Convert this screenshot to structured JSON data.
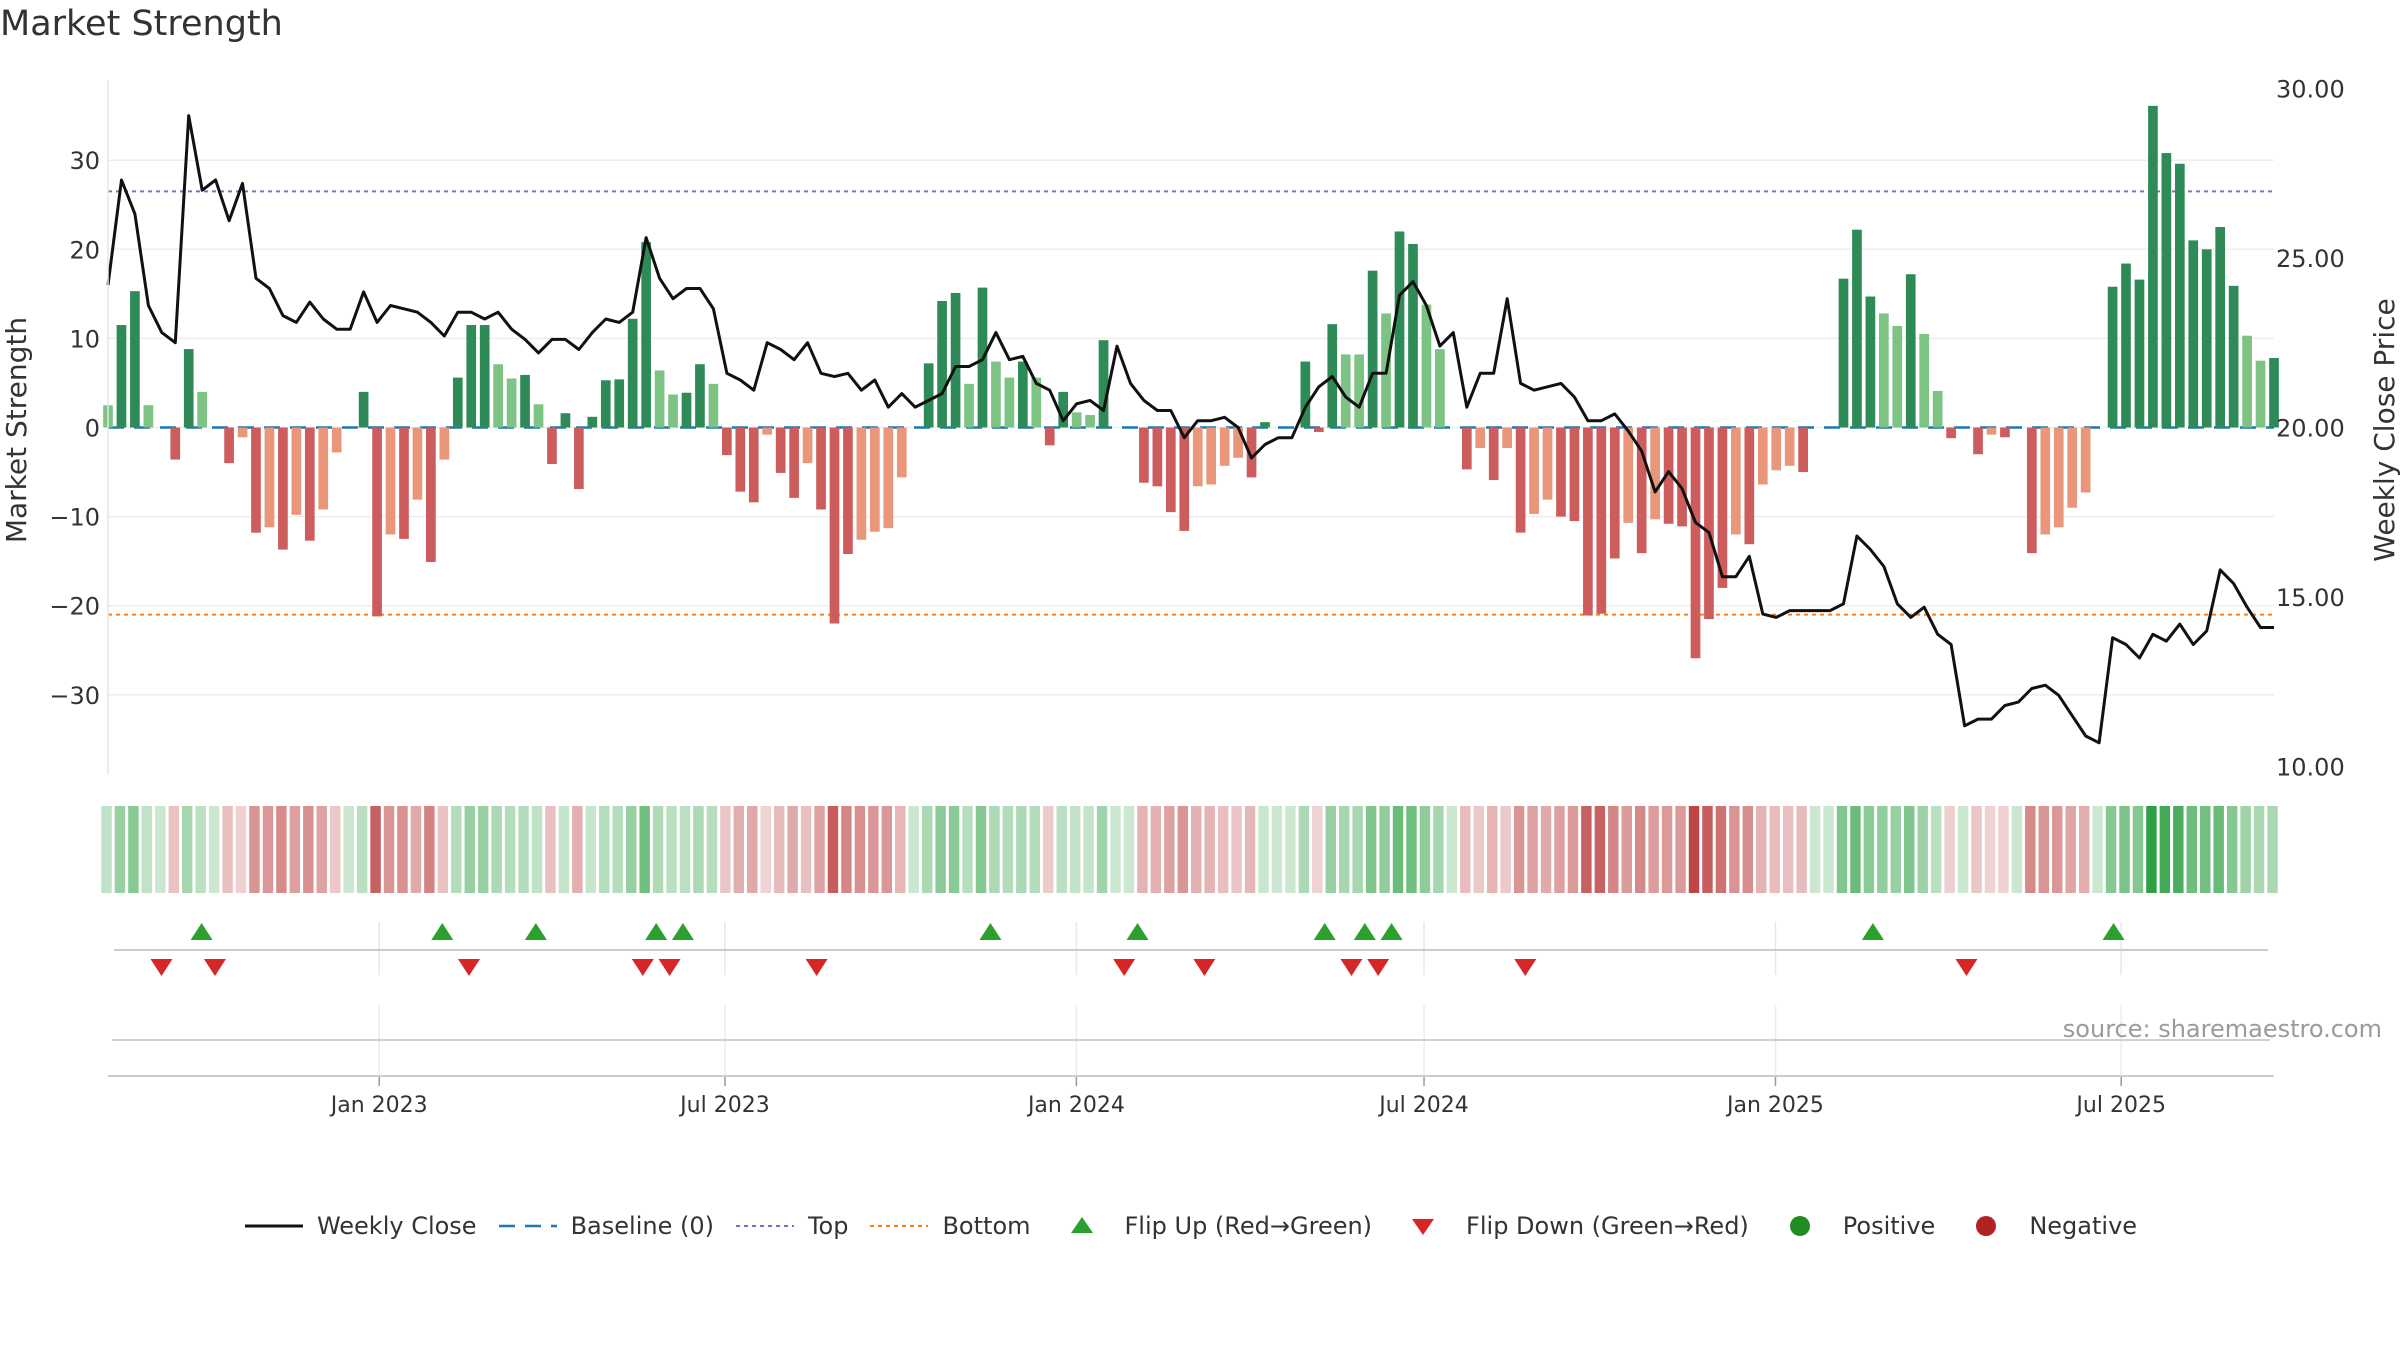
{
  "title": "Market Strength",
  "source": "source: sharemaestro.com",
  "colors": {
    "pos_strong": "#2e8b57",
    "pos_light": "#7dc383",
    "neg_strong": "#cd5c5c",
    "neg_light": "#e9967a",
    "close_line": "#111111",
    "baseline": "#1f77b4",
    "top": "#9467bd",
    "bottom": "#ff7f0e",
    "flip_up": "#2ca02c",
    "flip_down": "#d62728",
    "positive_dot": "#228b22",
    "negative_dot": "#b22222"
  },
  "legend": [
    {
      "key": "close",
      "label": "Weekly Close"
    },
    {
      "key": "baseline",
      "label": "Baseline (0)"
    },
    {
      "key": "top",
      "label": "Top"
    },
    {
      "key": "bottom",
      "label": "Bottom"
    },
    {
      "key": "flip_up",
      "label": "Flip Up (Red→Green)"
    },
    {
      "key": "flip_down",
      "label": "Flip Down (Green→Red)"
    },
    {
      "key": "positive",
      "label": "Positive"
    },
    {
      "key": "negative",
      "label": "Negative"
    }
  ],
  "chart_data": {
    "type": "bar",
    "ylabel": "Market Strength",
    "y2label": "Weekly Close Price",
    "ylim": [
      -39,
      39
    ],
    "y2lim": [
      9.75,
      30.25
    ],
    "yticks": [
      -30,
      -20,
      -10,
      0,
      10,
      20,
      30
    ],
    "ytick_labels": [
      "−30",
      "−20",
      "−10",
      "0",
      "10",
      "20",
      "30"
    ],
    "y2ticks": [
      10,
      15,
      20,
      25,
      30
    ],
    "y2tick_labels": [
      "10.00",
      "15.00",
      "20.00",
      "25.00",
      "30.00"
    ],
    "top_level": 26.5,
    "bottom_level": -21,
    "start_date": "2022-08-12",
    "end_date": "2025-09-19",
    "x_ticks": [
      {
        "date": "2023-01-01",
        "label": "Jan 2023"
      },
      {
        "date": "2023-07-01",
        "label": "Jul 2023"
      },
      {
        "date": "2024-01-01",
        "label": "Jan 2024"
      },
      {
        "date": "2024-07-01",
        "label": "Jul 2024"
      },
      {
        "date": "2025-01-01",
        "label": "Jan 2025"
      },
      {
        "date": "2025-07-01",
        "label": "Jul 2025"
      }
    ],
    "strength": [
      2.5,
      11.5,
      15.3,
      2.5,
      0,
      -3.6,
      8.8,
      4,
      0,
      -4,
      -1.1,
      -11.8,
      -11.2,
      -13.7,
      -9.8,
      -12.7,
      -9.2,
      -2.8,
      0,
      4,
      -21.2,
      -12,
      -12.5,
      -8.1,
      -15.1,
      -3.6,
      5.6,
      11.5,
      11.5,
      7.1,
      5.5,
      5.9,
      2.6,
      -4.1,
      1.6,
      -6.9,
      1.2,
      5.3,
      5.4,
      12.2,
      20.8,
      6.4,
      3.7,
      3.9,
      7.1,
      4.9,
      -3.1,
      -7.2,
      -8.4,
      -0.8,
      -5.1,
      -7.9,
      -4,
      -9.2,
      -22,
      -14.2,
      -12.6,
      -11.7,
      -11.3,
      -5.6,
      0,
      7.2,
      14.2,
      15.1,
      4.9,
      15.7,
      7.4,
      5.6,
      7.4,
      5.6,
      -2,
      4,
      1.7,
      1.4,
      9.8,
      0,
      0,
      -6.2,
      -6.6,
      -9.5,
      -11.6,
      -6.6,
      -6.4,
      -4.3,
      -3.4,
      -5.6,
      0.6,
      0,
      0,
      7.4,
      -0.5,
      11.6,
      8.2,
      8.2,
      17.6,
      12.8,
      22,
      20.6,
      13.8,
      8.8,
      0,
      -4.7,
      -2.3,
      -5.9,
      -2.3,
      -11.8,
      -9.7,
      -8.1,
      -10,
      -10.5,
      -21.1,
      -20.9,
      -14.7,
      -10.7,
      -14.1,
      -10.3,
      -10.8,
      -11.1,
      -25.9,
      -21.5,
      -18,
      -12,
      -13.1,
      -6.4,
      -4.8,
      -4.3,
      -5,
      0,
      0,
      16.7,
      22.2,
      14.7,
      12.8,
      11.4,
      17.2,
      10.5,
      4.1,
      -1.2,
      0,
      -3,
      -0.8,
      -1.1,
      0,
      -14.1,
      -12,
      -11.2,
      -9,
      -7.3,
      0,
      15.8,
      18.4,
      16.6,
      36.1,
      30.8,
      29.6,
      21,
      20,
      22.5,
      15.9,
      10.3,
      7.5,
      7.8
    ],
    "close": [
      24.2,
      27.3,
      26.3,
      23.6,
      22.8,
      22.5,
      29.2,
      27,
      27.3,
      26.1,
      27.2,
      24.4,
      24.1,
      23.3,
      23.1,
      23.7,
      23.2,
      22.9,
      22.9,
      24,
      23.1,
      23.6,
      23.5,
      23.4,
      23.1,
      22.7,
      23.4,
      23.4,
      23.2,
      23.4,
      22.9,
      22.6,
      22.2,
      22.6,
      22.6,
      22.3,
      22.8,
      23.2,
      23.1,
      23.4,
      25.6,
      24.4,
      23.8,
      24.1,
      24.1,
      23.5,
      21.6,
      21.4,
      21.1,
      22.5,
      22.3,
      22,
      22.5,
      21.6,
      21.5,
      21.6,
      21.1,
      21.4,
      20.6,
      21,
      20.6,
      20.8,
      21,
      21.8,
      21.8,
      22,
      22.8,
      22,
      22.1,
      21.3,
      21.1,
      20.2,
      20.7,
      20.8,
      20.5,
      22.4,
      21.3,
      20.8,
      20.5,
      20.5,
      19.7,
      20.2,
      20.2,
      20.3,
      20,
      19.1,
      19.5,
      19.7,
      19.7,
      20.6,
      21.2,
      21.5,
      20.9,
      20.6,
      21.6,
      21.6,
      23.9,
      24.3,
      23.6,
      22.4,
      22.8,
      20.6,
      21.6,
      21.6,
      23.8,
      21.3,
      21.1,
      21.2,
      21.3,
      20.9,
      20.2,
      20.2,
      20.4,
      19.9,
      19.3,
      18.1,
      18.7,
      18.2,
      17.2,
      16.9,
      15.6,
      15.6,
      16.2,
      14.5,
      14.4,
      14.6,
      14.6,
      14.6,
      14.6,
      14.8,
      16.8,
      16.4,
      15.9,
      14.8,
      14.4,
      14.7,
      13.9,
      13.6,
      11.2,
      11.4,
      11.4,
      11.8,
      11.9,
      12.3,
      12.4,
      12.1,
      11.5,
      10.9,
      10.7,
      13.8,
      13.6,
      13.2,
      13.9,
      13.7,
      14.2,
      13.6,
      14,
      15.8,
      15.4,
      14.7,
      14.1,
      14.1
    ],
    "flip_up_dates": [
      "2022-09-30",
      "2023-02-03",
      "2023-03-24",
      "2023-05-26",
      "2023-06-09",
      "2023-11-17",
      "2024-02-02",
      "2024-05-10",
      "2024-05-31",
      "2024-06-14",
      "2025-02-21",
      "2025-06-27"
    ],
    "flip_down_dates": [
      "2022-09-09",
      "2022-10-07",
      "2023-02-17",
      "2023-05-19",
      "2023-06-02",
      "2023-08-18",
      "2024-01-26",
      "2024-03-08",
      "2024-05-24",
      "2024-06-07",
      "2024-08-23",
      "2025-04-11"
    ]
  }
}
